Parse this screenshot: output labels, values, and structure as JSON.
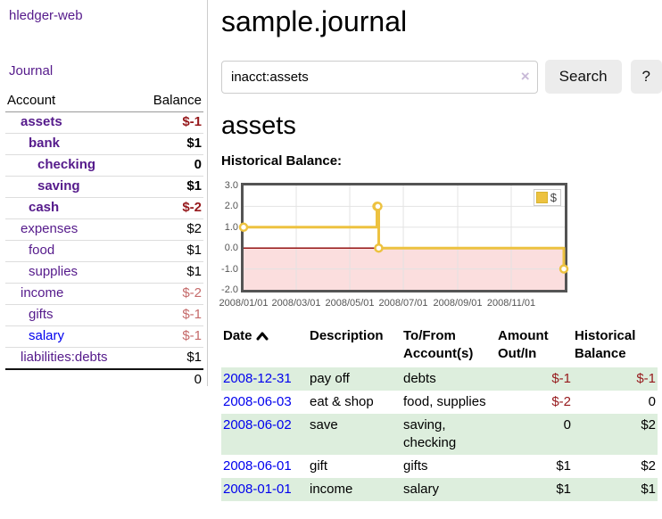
{
  "app": {
    "title": "hledger-web"
  },
  "sidebar": {
    "journal_link": "Journal",
    "table": {
      "headers": {
        "account": "Account",
        "balance": "Balance"
      },
      "rows": [
        {
          "account": "assets",
          "balance": "$-1",
          "depth": 1,
          "bold": true,
          "neg": "strong",
          "link": "purple"
        },
        {
          "account": "bank",
          "balance": "$1",
          "depth": 2,
          "bold": true,
          "neg": "none",
          "link": "purple"
        },
        {
          "account": "checking",
          "balance": "0",
          "depth": 3,
          "bold": true,
          "neg": "none",
          "link": "purple"
        },
        {
          "account": "saving",
          "balance": "$1",
          "depth": 3,
          "bold": true,
          "neg": "none",
          "link": "purple"
        },
        {
          "account": "cash",
          "balance": "$-2",
          "depth": 2,
          "bold": true,
          "neg": "strong",
          "link": "purple"
        },
        {
          "account": "expenses",
          "balance": "$2",
          "depth": 1,
          "bold": false,
          "neg": "none",
          "link": "purple"
        },
        {
          "account": "food",
          "balance": "$1",
          "depth": 2,
          "bold": false,
          "neg": "none",
          "link": "purple"
        },
        {
          "account": "supplies",
          "balance": "$1",
          "depth": 2,
          "bold": false,
          "neg": "none",
          "link": "purple"
        },
        {
          "account": "income",
          "balance": "$-2",
          "depth": 1,
          "bold": false,
          "neg": "light",
          "link": "purple"
        },
        {
          "account": "gifts",
          "balance": "$-1",
          "depth": 2,
          "bold": false,
          "neg": "light",
          "link": "purple"
        },
        {
          "account": "salary",
          "balance": "$-1",
          "depth": 2,
          "bold": false,
          "neg": "light",
          "link": "blue"
        },
        {
          "account": "liabilities:debts",
          "balance": "$1",
          "depth": 1,
          "bold": false,
          "neg": "none",
          "link": "purple"
        }
      ],
      "total": "0"
    }
  },
  "header": {
    "title": "sample.journal"
  },
  "search": {
    "query": "inacct:assets",
    "clear_icon": "×",
    "button_label": "Search",
    "help_label": "?"
  },
  "account_page": {
    "title": "assets",
    "chart_label": "Historical Balance:"
  },
  "chart_data": {
    "type": "line",
    "style": "step-after",
    "title": "Historical Balance:",
    "series": [
      {
        "name": "$",
        "points": [
          [
            "2008-01-01",
            1
          ],
          [
            "2008-06-01",
            2
          ],
          [
            "2008-06-02",
            2
          ],
          [
            "2008-06-03",
            0
          ],
          [
            "2008-12-31",
            -1
          ]
        ]
      }
    ],
    "x_ticks": [
      "2008/01/01",
      "2008/03/01",
      "2008/05/01",
      "2008/07/01",
      "2008/09/01",
      "2008/11/01"
    ],
    "x_tick_dates": [
      "2008-01-01",
      "2008-03-01",
      "2008-05-01",
      "2008-07-01",
      "2008-09-01",
      "2008-11-01"
    ],
    "y_ticks": [
      "3.0",
      "2.0",
      "1.0",
      "0.0",
      "-1.0",
      "-2.0"
    ],
    "ylim": [
      -2,
      3
    ],
    "xlim": [
      "2008-01-01",
      "2009-01-01"
    ],
    "grid": true,
    "legend": {
      "label": "$",
      "position": "top-right"
    },
    "colors": {
      "line": "#edc240",
      "marker_fill": "#ffffff",
      "negative_fill": "#fbdede",
      "zero_line": "#8b0000",
      "grid": "#e3e3e3",
      "border": "#545454",
      "tick_text": "#545454"
    }
  },
  "register": {
    "headers": {
      "date": "Date",
      "description": "Description",
      "accounts": "To/From Account(s)",
      "amount": "Amount Out/In",
      "balance": "Historical Balance"
    },
    "sort_icon": "chevron-up",
    "rows": [
      {
        "date": "2008-12-31",
        "description": "pay off",
        "accounts": "debts",
        "amount": "$-1",
        "balance": "$-1",
        "amount_neg": true,
        "balance_neg": true
      },
      {
        "date": "2008-06-03",
        "description": "eat & shop",
        "accounts": "food, supplies",
        "amount": "$-2",
        "balance": "0",
        "amount_neg": true,
        "balance_neg": false
      },
      {
        "date": "2008-06-02",
        "description": "save",
        "accounts": "saving, checking",
        "amount": "0",
        "balance": "$2",
        "amount_neg": false,
        "balance_neg": false
      },
      {
        "date": "2008-06-01",
        "description": "gift",
        "accounts": "gifts",
        "amount": "$1",
        "balance": "$2",
        "amount_neg": false,
        "balance_neg": false
      },
      {
        "date": "2008-01-01",
        "description": "income",
        "accounts": "salary",
        "amount": "$1",
        "balance": "$1",
        "amount_neg": false,
        "balance_neg": false
      }
    ]
  },
  "colors": {
    "link_purple": "#551a8b",
    "link_blue": "#0000ee",
    "negative_strong": "#96191c",
    "negative_light": "#c56a6a",
    "row_stripe_green": "#ddeedd",
    "button_bg": "#ececec",
    "divider": "#cccccc"
  }
}
